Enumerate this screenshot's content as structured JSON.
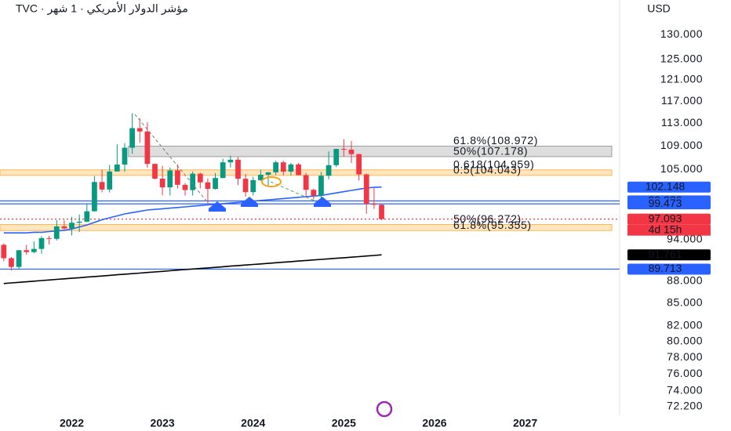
{
  "chart_data": {
    "type": "candlestick",
    "title": "TVC · مؤشر الدولار الأمريكي · 1 شهر",
    "currency": "USD",
    "log_scale": true,
    "ylim": [
      71.2,
      137.3
    ],
    "yticks": [
      {
        "value": 130,
        "label": "130.000"
      },
      {
        "value": 125,
        "label": "125.000"
      },
      {
        "value": 121,
        "label": "121.000"
      },
      {
        "value": 117,
        "label": "117.000"
      },
      {
        "value": 113,
        "label": "113.000"
      },
      {
        "value": 109,
        "label": "109.000"
      },
      {
        "value": 105,
        "label": "105.000"
      },
      {
        "value": 94,
        "label": "94.000"
      },
      {
        "value": 88,
        "label": "88.000"
      },
      {
        "value": 85,
        "label": "85.000"
      },
      {
        "value": 82,
        "label": "82.000"
      },
      {
        "value": 80,
        "label": "80.000"
      },
      {
        "value": 78,
        "label": "78.000"
      },
      {
        "value": 76,
        "label": "76.000"
      },
      {
        "value": 74,
        "label": "74.000"
      },
      {
        "value": 72.2,
        "label": "72.200"
      }
    ],
    "categories": [
      null,
      null,
      null,
      null,
      null,
      null,
      null,
      null,
      null,
      "2022",
      null,
      null,
      null,
      null,
      null,
      null,
      null,
      null,
      null,
      null,
      null,
      "2023",
      null,
      null,
      null,
      null,
      null,
      null,
      null,
      null,
      null,
      null,
      null,
      "2024",
      null,
      null,
      null,
      null,
      null,
      null,
      null,
      null,
      null,
      null,
      null,
      "2025",
      null,
      null,
      null,
      null,
      null,
      null,
      null,
      null,
      null,
      null,
      null,
      "2026",
      null,
      null,
      null,
      null,
      null,
      null,
      null,
      null,
      null,
      null,
      null,
      "2027",
      null,
      null,
      null,
      null,
      null,
      null,
      null,
      null,
      null,
      null,
      null,
      null
    ],
    "up_color": "#089981",
    "down_color": "#f23645",
    "open": [
      93.23,
      91.28,
      90.03,
      92.44,
      92.17,
      92.63,
      94.23,
      94.12,
      95.99,
      95.67,
      96.54,
      96.71,
      98.31,
      102.96,
      101.75,
      104.69,
      105.85,
      108.7,
      112.12,
      111.53,
      105.95,
      103.52,
      102.1,
      104.87,
      102.51,
      101.66,
      104.33,
      102.91,
      101.86,
      103.62,
      106.22,
      106.66,
      103.5,
      101.33,
      103.27,
      104.16,
      104.55,
      106.22,
      104.67,
      105.87,
      104.1,
      101.7,
      100.78,
      103.99,
      105.74,
      108.49,
      108.37,
      107.61,
      104.21,
      99.47,
      99.33,
      null,
      null,
      null,
      null,
      null,
      null,
      null,
      null,
      null,
      null,
      null,
      null,
      null,
      null,
      null,
      null,
      null,
      null,
      null,
      null,
      null,
      null,
      null,
      null,
      null,
      null,
      null,
      null,
      null,
      null,
      null
    ],
    "high": [
      93.44,
      91.44,
      92.46,
      93.19,
      93.73,
      94.5,
      94.56,
      96.94,
      96.91,
      97.44,
      97.8,
      99.42,
      103.94,
      105.01,
      105.79,
      109.29,
      109.48,
      114.78,
      113.95,
      113.15,
      106.02,
      105.63,
      105.36,
      105.88,
      102.81,
      104.7,
      104.49,
      103.57,
      104.44,
      106.84,
      107.35,
      107.11,
      104.26,
      103.82,
      104.97,
      104.6,
      106.52,
      106.49,
      106.13,
      106.13,
      104.44,
      101.92,
      104.63,
      108.07,
      108.54,
      110.18,
      109.88,
      107.66,
      104.37,
      101.98,
      99.42,
      null,
      null,
      null,
      null,
      null,
      null,
      null,
      null,
      null,
      null,
      null,
      null,
      null,
      null,
      null,
      null,
      null,
      null,
      null,
      null,
      null,
      null,
      null,
      null,
      null,
      null,
      null,
      null,
      null,
      null,
      null
    ],
    "low": [
      90.85,
      89.53,
      89.66,
      91.78,
      92.0,
      91.94,
      93.28,
      93.87,
      95.54,
      94.63,
      95.14,
      96.63,
      98.24,
      101.3,
      101.29,
      104.69,
      104.64,
      107.68,
      109.54,
      105.32,
      103.39,
      100.82,
      100.8,
      101.92,
      100.79,
      100.78,
      101.92,
      99.58,
      101.74,
      103.57,
      105.36,
      102.46,
      100.62,
      100.82,
      103.14,
      102.36,
      104.1,
      104.08,
      104.04,
      104.07,
      100.52,
      100.16,
      100.16,
      103.37,
      105.42,
      107.2,
      106.12,
      103.21,
      97.92,
      98.69,
      96.94,
      null,
      null,
      null,
      null,
      null,
      null,
      null,
      null,
      null,
      null,
      null,
      null,
      null,
      null,
      null,
      null,
      null,
      null,
      null,
      null,
      null,
      null,
      null,
      null,
      null,
      null,
      null,
      null,
      null,
      null,
      null
    ],
    "close": [
      91.28,
      90.03,
      92.44,
      92.17,
      92.63,
      94.23,
      94.12,
      95.99,
      95.67,
      96.54,
      96.71,
      98.31,
      102.96,
      101.75,
      104.69,
      105.85,
      108.7,
      112.12,
      111.53,
      105.95,
      103.52,
      102.1,
      104.87,
      102.51,
      101.66,
      104.33,
      102.91,
      101.86,
      103.62,
      106.22,
      106.66,
      103.5,
      101.33,
      103.27,
      104.16,
      104.55,
      106.22,
      104.67,
      105.87,
      104.1,
      101.7,
      100.78,
      103.99,
      105.74,
      108.49,
      108.37,
      107.61,
      104.21,
      99.47,
      99.33,
      97.093,
      null,
      null,
      null,
      null,
      null,
      null,
      null,
      null,
      null,
      null,
      null,
      null,
      null,
      null,
      null,
      null,
      null,
      null,
      null,
      null,
      null,
      null,
      null,
      null,
      null,
      null,
      null,
      null,
      null,
      null,
      null
    ],
    "lines": [
      {
        "color": "#2962ff",
        "values": [
          95.0,
          95.0,
          95.0,
          95.0,
          95.1,
          95.1,
          95.2,
          95.3,
          95.4,
          95.6,
          95.9,
          96.2,
          96.6,
          97.0,
          97.3,
          97.6,
          97.9,
          98.1,
          98.3,
          98.5,
          98.6,
          98.7,
          98.8,
          98.9,
          99.0,
          99.1,
          99.2,
          99.3,
          99.4,
          99.5,
          99.6,
          99.7,
          99.8,
          99.9,
          100.0,
          100.1,
          100.2,
          100.3,
          100.4,
          100.5,
          100.6,
          100.7,
          100.8,
          101.0,
          101.2,
          101.4,
          101.6,
          101.8,
          102.0,
          102.1,
          102.148,
          null,
          null,
          null,
          null,
          null,
          null,
          null,
          null,
          null,
          null,
          null,
          null,
          null,
          null,
          null,
          null,
          null,
          null,
          null,
          null,
          null,
          null,
          null,
          null,
          null,
          null,
          null,
          null,
          null,
          null,
          null
        ]
      },
      {
        "color": "#000000",
        "values": [
          87.7,
          87.78,
          87.86,
          87.94,
          88.02,
          88.11,
          88.19,
          88.27,
          88.35,
          88.43,
          88.51,
          88.59,
          88.67,
          88.75,
          88.84,
          88.92,
          89.0,
          89.08,
          89.16,
          89.24,
          89.32,
          89.4,
          89.49,
          89.57,
          89.65,
          89.73,
          89.81,
          89.89,
          89.97,
          90.05,
          90.14,
          90.22,
          90.3,
          90.38,
          90.46,
          90.54,
          90.62,
          90.7,
          90.78,
          90.87,
          90.95,
          91.03,
          91.11,
          91.19,
          91.27,
          91.35,
          91.43,
          91.51,
          91.6,
          91.68,
          91.761,
          null,
          null,
          null,
          null,
          null,
          null,
          null,
          null,
          null,
          null,
          null,
          null,
          null,
          null,
          null,
          null,
          null,
          null,
          null,
          null,
          null,
          null,
          null,
          null,
          null,
          null,
          null,
          null,
          null,
          null,
          null
        ]
      }
    ],
    "zones": [
      {
        "from": 107.178,
        "to": 108.972,
        "color": "#9e9e9e",
        "start": 17
      },
      {
        "from": 104.043,
        "to": 104.959,
        "color": "#ffb74d",
        "start": 0
      },
      {
        "from": 95.355,
        "to": 96.272,
        "color": "#ffb74d",
        "start": 0
      }
    ],
    "fib_labels": [
      {
        "label": "61.8%(108.972)",
        "value": 108.972,
        "color": "#131722"
      },
      {
        "label": "50%(107.178)",
        "value": 107.178,
        "color": "#131722"
      },
      {
        "label": "0.618(104.959)",
        "value": 104.959,
        "color": "#f7a21b"
      },
      {
        "label": "0.5(104.043)",
        "value": 104.043,
        "color": "#f7a21b"
      },
      {
        "label": "50%(96.272)",
        "value": 96.272,
        "color": "#f7a21b"
      },
      {
        "label": "61.8%(95.355)",
        "value": 95.355,
        "color": "#f7a21b"
      }
    ],
    "price_labels": [
      {
        "value": 102.148,
        "color": "#2962ff",
        "line": false
      },
      {
        "value": 99.936,
        "color": "#2962ff",
        "line": true
      },
      {
        "value": 99.473,
        "color": "#2962ff",
        "line": true
      },
      {
        "value": 97.093,
        "color": "#f23645",
        "line": true,
        "countdown": "4d 15h"
      },
      {
        "value": 91.761,
        "color": "#000000",
        "line": false
      },
      {
        "value": 89.713,
        "color": "#2962ff",
        "line": true
      }
    ]
  }
}
